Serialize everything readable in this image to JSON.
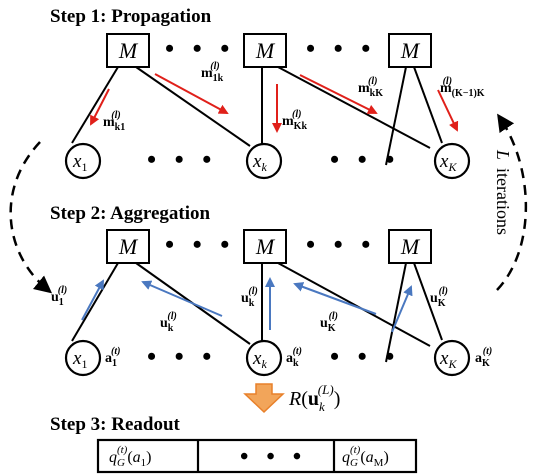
{
  "steps": {
    "step1": "Step 1: Propagation",
    "step2": "Step 2: Aggregation",
    "step3": "Step 3: Readout"
  },
  "node_symbol": "M",
  "ellipsis": "• • •",
  "iterations": {
    "variable": "L",
    "word": "iterations"
  },
  "variables": {
    "x1": {
      "base": "x",
      "sub": "1"
    },
    "xk": {
      "base": "x",
      "sub": "k"
    },
    "xK": {
      "base": "x",
      "sub": "K"
    }
  },
  "propagation_messages": [
    {
      "base": "m",
      "sup": "(l)",
      "sub": "k1"
    },
    {
      "base": "m",
      "sup": "(l)",
      "sub": "1k"
    },
    {
      "base": "m",
      "sup": "(l)",
      "sub": "Kk"
    },
    {
      "base": "m",
      "sup": "(l)",
      "sub": "kK"
    },
    {
      "base": "m",
      "sup": "(l)",
      "sub": "(K−1)K"
    }
  ],
  "aggregation_messages": [
    {
      "base": "u",
      "sup": "(l)",
      "sub": "1"
    },
    {
      "base": "u",
      "sup": "(l)",
      "sub": "k"
    },
    {
      "base": "u",
      "sup": "(l)",
      "sub": "k"
    },
    {
      "base": "u",
      "sup": "(l)",
      "sub": "K"
    },
    {
      "base": "u",
      "sup": "(l)",
      "sub": "K"
    }
  ],
  "actions": [
    {
      "base": "a",
      "sup": "(t)",
      "sub": "1"
    },
    {
      "base": "a",
      "sup": "(t)",
      "sub": "k"
    },
    {
      "base": "a",
      "sup": "(t)",
      "sub": "K"
    }
  ],
  "readout": {
    "func": "R",
    "base": "u",
    "sup": "(L)",
    "sub": "k"
  },
  "table_cells": [
    {
      "base": "q",
      "sup": "(t)",
      "sub": "G",
      "arg": "a",
      "arg_sub": "1"
    },
    {
      "ellipsis": "• • •"
    },
    {
      "base": "q",
      "sup": "(t)",
      "sub": "G",
      "arg": "a",
      "arg_sub": "M"
    }
  ],
  "colors": {
    "propagation_arrow": "#e0201a",
    "aggregation_arrow": "#4a78c0",
    "readout_arrow": "#f2a55a",
    "readout_arrow_stroke": "#e8802a",
    "line": "#000000"
  }
}
